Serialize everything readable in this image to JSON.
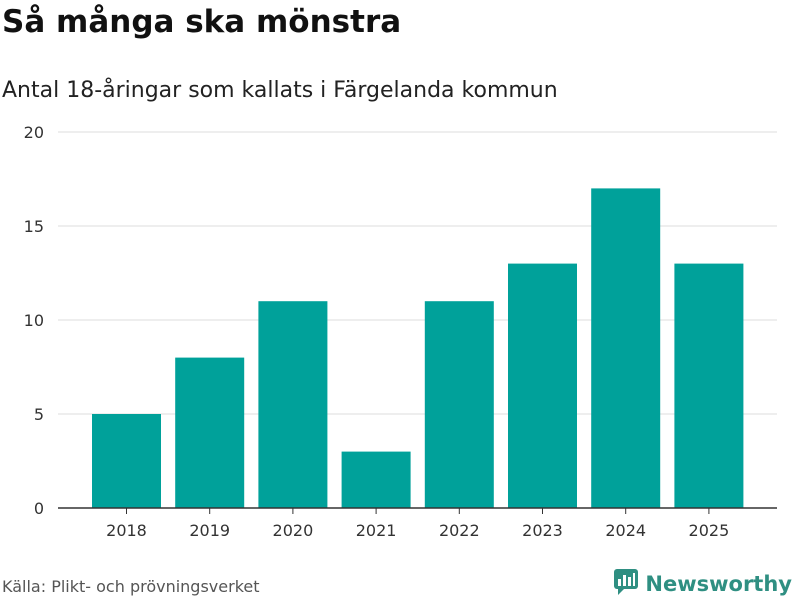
{
  "header": {
    "title": "Så många ska mönstra",
    "subtitle": "Antal 18-åringar som kallats i Färgelanda kommun"
  },
  "chart_data": {
    "type": "bar",
    "title": "Så många ska mönstra",
    "subtitle": "Antal 18-åringar som kallats i Färgelanda kommun",
    "categories": [
      "2018",
      "2019",
      "2020",
      "2021",
      "2022",
      "2023",
      "2024",
      "2025"
    ],
    "values": [
      5,
      8,
      11,
      3,
      11,
      13,
      17,
      13
    ],
    "xlabel": "",
    "ylabel": "",
    "ylim": [
      0,
      20
    ],
    "yticks": [
      0,
      5,
      10,
      15,
      20
    ],
    "grid": true,
    "bar_color": "#00a19a"
  },
  "footer": {
    "source": "Källa: Plikt- och prövningsverket",
    "brand_name": "Newsworthy",
    "brand_icon": "newsworthy-logo-icon",
    "brand_color": "#2f8f82"
  }
}
